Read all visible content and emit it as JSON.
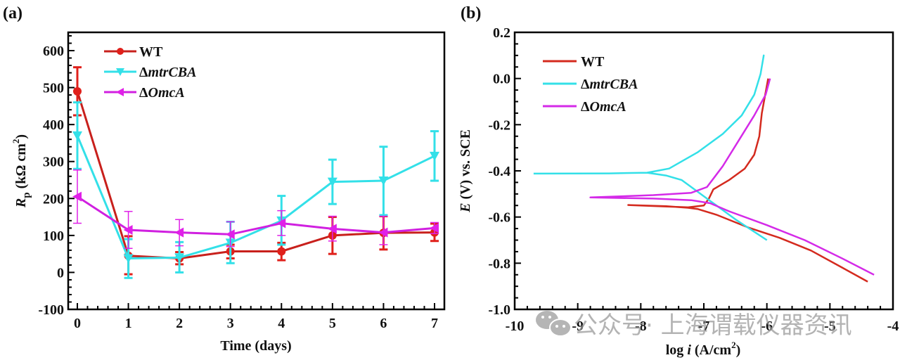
{
  "chart_data": [
    {
      "panel_label": "(a)",
      "type": "line",
      "title": "",
      "xlabel": "Time (days)",
      "ylabel_main": "R",
      "ylabel_sub": "p",
      "ylabel_unit": " (kΩ cm",
      "ylabel_sup": "2",
      "ylabel_close": ")",
      "xlim": [
        -0.1,
        7.1
      ],
      "ylim": [
        -100,
        650
      ],
      "x_ticks": [
        0,
        1,
        2,
        3,
        4,
        5,
        6,
        7
      ],
      "x_tick_labels": [
        "0",
        "1",
        "2",
        "3",
        "4",
        "5",
        "6",
        "7"
      ],
      "y_ticks": [
        -100,
        0,
        100,
        200,
        300,
        400,
        500,
        600
      ],
      "y_tick_labels": [
        "-100",
        "0",
        "100",
        "200",
        "300",
        "400",
        "500",
        "600"
      ],
      "legend_position": "top-left",
      "grid": false,
      "x": [
        0,
        1,
        2,
        3,
        4,
        5,
        6,
        7
      ],
      "series": [
        {
          "name": "WT",
          "prefix": "",
          "italic": "",
          "plain": "WT",
          "color": "#e0201b",
          "line_color": "#c8201c",
          "marker": "circle",
          "values": [
            490,
            45,
            38,
            57,
            57,
            100,
            107,
            108
          ],
          "err_low": [
            425,
            -5,
            22,
            38,
            33,
            50,
            62,
            85
          ],
          "err_high": [
            555,
            98,
            55,
            75,
            80,
            150,
            152,
            132
          ]
        },
        {
          "name": "ΔmtrCBA",
          "prefix": "Δ",
          "italic": "mtrCBA",
          "plain": "",
          "color": "#33e0e8",
          "line_color": "#33e0e8",
          "marker": "triangle-down",
          "values": [
            370,
            38,
            40,
            80,
            140,
            245,
            248,
            315
          ],
          "err_low": [
            280,
            -15,
            0,
            25,
            75,
            185,
            155,
            248
          ],
          "err_high": [
            460,
            90,
            82,
            137,
            207,
            305,
            340,
            382
          ]
        },
        {
          "name": "ΔOmcA",
          "prefix": "Δ",
          "italic": "OmcA",
          "plain": "",
          "color": "#e020e8",
          "line_color": "#d020e0",
          "marker": "triangle-left",
          "values": [
            205,
            115,
            108,
            103,
            133,
            118,
            108,
            120
          ],
          "err_low": [
            133,
            65,
            72,
            70,
            100,
            85,
            75,
            105
          ],
          "err_high": [
            277,
            165,
            143,
            137,
            167,
            152,
            152,
            135
          ]
        }
      ]
    },
    {
      "panel_label": "(b)",
      "type": "line",
      "title": "",
      "xlabel_pre": "log ",
      "xlabel_italic": "i",
      "xlabel_post": " (A/cm",
      "xlabel_sup": "2",
      "xlabel_close": ")",
      "ylabel_italic": "E",
      "ylabel_post": " (V) vs. SCE",
      "xlim": [
        -10,
        -4
      ],
      "ylim": [
        -1.0,
        0.2
      ],
      "x_ticks": [
        -10,
        -9,
        -8,
        -7,
        -6,
        -5,
        -4
      ],
      "x_tick_labels": [
        "-10",
        "-9",
        "-8",
        "-7",
        "-6",
        "-5",
        "-4"
      ],
      "y_ticks": [
        -1.0,
        -0.8,
        -0.6,
        -0.4,
        -0.2,
        0.0,
        0.2
      ],
      "y_tick_labels": [
        "-1.0",
        "-0.8",
        "-0.6",
        "-0.4",
        "-0.2",
        "0.0",
        "0.2"
      ],
      "legend_position": "top-left",
      "grid": false,
      "series": [
        {
          "name": "WT",
          "prefix": "",
          "italic": "",
          "plain": "WT",
          "color": "#d42a1e",
          "points": [
            [
              -4.4,
              -0.88
            ],
            [
              -4.8,
              -0.82
            ],
            [
              -5.3,
              -0.745
            ],
            [
              -5.8,
              -0.69
            ],
            [
              -6.3,
              -0.645
            ],
            [
              -6.8,
              -0.59
            ],
            [
              -7.1,
              -0.565
            ],
            [
              -7.25,
              -0.56
            ],
            [
              -7.6,
              -0.553
            ],
            [
              -8.2,
              -0.548
            ],
            [
              -7.25,
              -0.558
            ],
            [
              -7.0,
              -0.55
            ],
            [
              -6.92,
              -0.52
            ],
            [
              -6.85,
              -0.48
            ],
            [
              -6.6,
              -0.44
            ],
            [
              -6.35,
              -0.39
            ],
            [
              -6.2,
              -0.33
            ],
            [
              -6.12,
              -0.25
            ],
            [
              -6.08,
              -0.15
            ],
            [
              -5.98,
              0.0
            ]
          ]
        },
        {
          "name": "ΔmtrCBA",
          "prefix": "Δ",
          "italic": "mtrCBA",
          "plain": "",
          "color": "#33e0e8",
          "points": [
            [
              -9.7,
              -0.412
            ],
            [
              -8.5,
              -0.411
            ],
            [
              -7.9,
              -0.408
            ],
            [
              -7.55,
              -0.39
            ],
            [
              -7.1,
              -0.32
            ],
            [
              -6.7,
              -0.24
            ],
            [
              -6.4,
              -0.16
            ],
            [
              -6.2,
              -0.07
            ],
            [
              -6.1,
              0.02
            ],
            [
              -6.05,
              0.1
            ],
            [
              -6.05,
              0.1
            ],
            [
              -6.1,
              0.02
            ],
            [
              -6.2,
              -0.07
            ],
            [
              -6.4,
              -0.16
            ],
            [
              -6.7,
              -0.24
            ],
            [
              -7.1,
              -0.32
            ],
            [
              -7.55,
              -0.39
            ],
            [
              -7.9,
              -0.408
            ],
            [
              -7.6,
              -0.42
            ],
            [
              -7.35,
              -0.44
            ],
            [
              -7.2,
              -0.47
            ],
            [
              -6.9,
              -0.53
            ],
            [
              -6.5,
              -0.61
            ],
            [
              -6.0,
              -0.7
            ]
          ]
        },
        {
          "name": "ΔOmcA",
          "prefix": "Δ",
          "italic": "OmcA",
          "plain": "",
          "color": "#d42ae8",
          "points": [
            [
              -4.3,
              -0.85
            ],
            [
              -4.8,
              -0.78
            ],
            [
              -5.4,
              -0.7
            ],
            [
              -6.0,
              -0.635
            ],
            [
              -6.6,
              -0.575
            ],
            [
              -6.9,
              -0.54
            ],
            [
              -7.2,
              -0.527
            ],
            [
              -7.8,
              -0.52
            ],
            [
              -8.8,
              -0.515
            ],
            [
              -8.8,
              -0.515
            ],
            [
              -7.8,
              -0.505
            ],
            [
              -7.2,
              -0.495
            ],
            [
              -6.95,
              -0.47
            ],
            [
              -6.7,
              -0.38
            ],
            [
              -6.45,
              -0.27
            ],
            [
              -6.2,
              -0.16
            ],
            [
              -6.02,
              -0.07
            ],
            [
              -5.95,
              0.0
            ]
          ]
        }
      ]
    }
  ],
  "watermark": {
    "text": "公众号· 上海谓载仪器资讯",
    "icon": "wechat-icon"
  }
}
